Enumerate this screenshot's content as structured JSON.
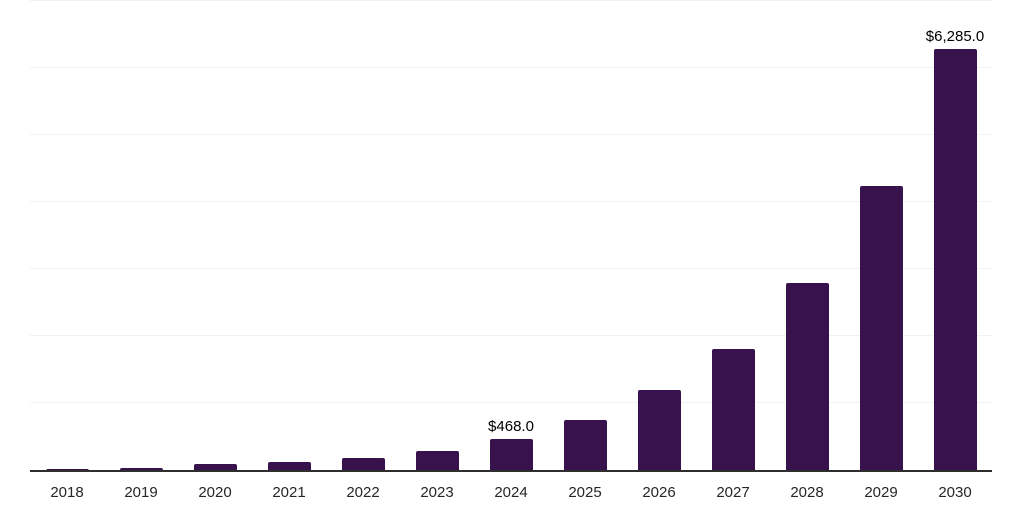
{
  "chart_data": {
    "type": "bar",
    "title": "",
    "xlabel": "",
    "ylabel": "",
    "categories": [
      "2018",
      "2019",
      "2020",
      "2021",
      "2022",
      "2023",
      "2024",
      "2025",
      "2026",
      "2027",
      "2028",
      "2029",
      "2030"
    ],
    "values": [
      30,
      40,
      98,
      126,
      185,
      290,
      468,
      755,
      1198,
      1815,
      2794,
      4240,
      6285
    ],
    "data_labels": [
      "",
      "",
      "",
      "",
      "",
      "",
      "$468.0",
      "",
      "",
      "",
      "",
      "",
      "$6,285.0"
    ],
    "ylim": [
      0,
      7000
    ],
    "grid_interval": 1000,
    "grid_visible": true,
    "legend_position": "none",
    "colors": {
      "bar": "#37124d",
      "axis": "#2e2e2e",
      "gridline": "#f2f2f2",
      "tick_label": "#262626",
      "data_label": "#000000"
    }
  }
}
